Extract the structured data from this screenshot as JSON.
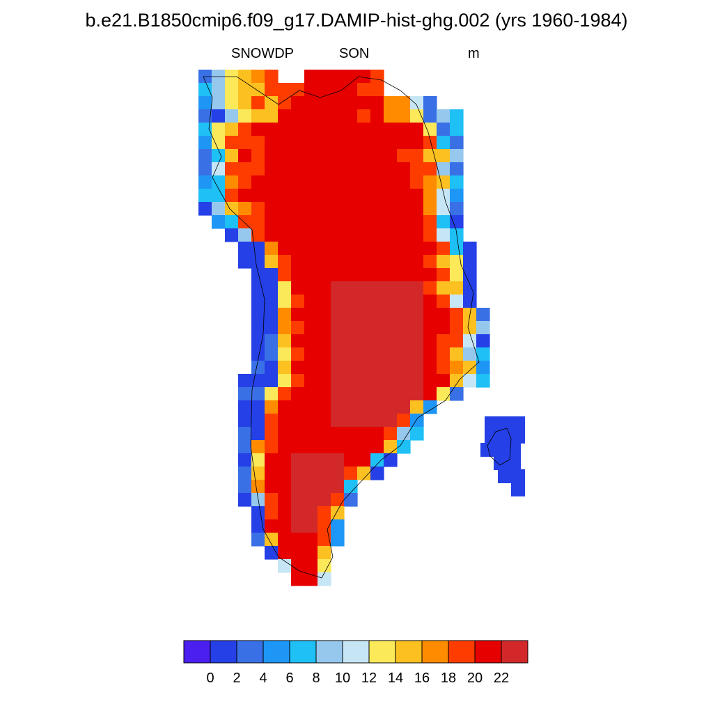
{
  "header": {
    "title": "b.e21.B1850cmip6.f09_g17.DAMIP-hist-ghg.002 (yrs 1960-1984)",
    "variable": "SNOWDP",
    "season": "SON",
    "units": "m"
  },
  "chart_data": {
    "type": "heatmap",
    "title": "b.e21.B1850cmip6.f09_g17.DAMIP-hist-ghg.002 (yrs 1960-1984)",
    "variable": "SNOWDP",
    "season": "SON",
    "units": "m",
    "region": "Greenland",
    "colorbar": {
      "levels": [
        0,
        2,
        4,
        6,
        8,
        10,
        12,
        14,
        16,
        18,
        20,
        22
      ],
      "tick_labels": [
        "0",
        "2",
        "4",
        "6",
        "8",
        "10",
        "12",
        "14",
        "16",
        "18",
        "20",
        "22"
      ],
      "colors": [
        "#4b1ff0",
        "#2540e6",
        "#3a70e6",
        "#1e96f5",
        "#1ec0f5",
        "#96c8ee",
        "#c6e6f6",
        "#fce95a",
        "#fcc020",
        "#ff8c00",
        "#ff3c00",
        "#e60000",
        "#d2282a"
      ]
    },
    "field_summary": {
      "interior_max_class": ">22",
      "interior_main_class": "20-22",
      "coastal_southwest_class": "0-2",
      "margin_range": "6-18"
    }
  }
}
